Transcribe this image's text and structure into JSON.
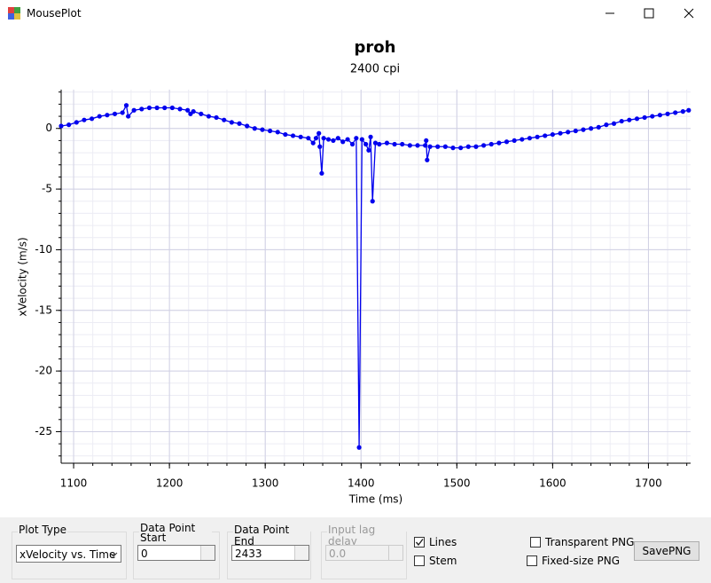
{
  "window": {
    "title": "MousePlot"
  },
  "chart_data": {
    "type": "line",
    "title": "proh",
    "subtitle": "2400 cpi",
    "xlabel": "Time (ms)",
    "ylabel": "xVelocity (m/s)",
    "color": "#0000ee",
    "grid": true,
    "xlim": [
      1087,
      1744
    ],
    "ylim": [
      -27.6,
      3.2
    ],
    "xticks": [
      1100,
      1200,
      1300,
      1400,
      1500,
      1600,
      1700
    ],
    "yticks": [
      0,
      -5,
      -10,
      -15,
      -20,
      -25
    ],
    "x": [
      1087,
      1095,
      1103,
      1111,
      1119,
      1127,
      1135,
      1143,
      1151,
      1155,
      1157,
      1163,
      1171,
      1179,
      1187,
      1195,
      1203,
      1211,
      1219,
      1222,
      1225,
      1233,
      1241,
      1249,
      1257,
      1265,
      1273,
      1281,
      1289,
      1297,
      1305,
      1313,
      1321,
      1329,
      1337,
      1345,
      1350,
      1353,
      1356,
      1357,
      1359,
      1361,
      1366,
      1371,
      1376,
      1381,
      1386,
      1391,
      1395,
      1398,
      1401,
      1405,
      1408,
      1410,
      1412,
      1415,
      1419,
      1427,
      1435,
      1443,
      1451,
      1459,
      1467,
      1468,
      1469,
      1472,
      1480,
      1488,
      1496,
      1504,
      1512,
      1520,
      1528,
      1536,
      1544,
      1552,
      1560,
      1568,
      1576,
      1584,
      1592,
      1600,
      1608,
      1616,
      1624,
      1632,
      1640,
      1648,
      1656,
      1664,
      1672,
      1680,
      1688,
      1696,
      1704,
      1712,
      1720,
      1728,
      1736,
      1742
    ],
    "values": [
      0.2,
      0.3,
      0.5,
      0.7,
      0.8,
      1.0,
      1.1,
      1.2,
      1.3,
      1.9,
      1.0,
      1.5,
      1.6,
      1.7,
      1.7,
      1.7,
      1.7,
      1.6,
      1.5,
      1.2,
      1.4,
      1.2,
      1.0,
      0.9,
      0.7,
      0.5,
      0.4,
      0.2,
      0.0,
      -0.1,
      -0.2,
      -0.3,
      -0.5,
      -0.6,
      -0.7,
      -0.8,
      -1.2,
      -0.8,
      -0.4,
      -1.5,
      -3.7,
      -0.8,
      -0.9,
      -1.0,
      -0.8,
      -1.1,
      -0.9,
      -1.3,
      -0.8,
      -26.3,
      -0.9,
      -1.3,
      -1.8,
      -0.7,
      -6.0,
      -1.2,
      -1.3,
      -1.2,
      -1.3,
      -1.3,
      -1.4,
      -1.4,
      -1.4,
      -1.0,
      -2.6,
      -1.5,
      -1.5,
      -1.5,
      -1.6,
      -1.6,
      -1.5,
      -1.5,
      -1.4,
      -1.3,
      -1.2,
      -1.1,
      -1.0,
      -0.9,
      -0.8,
      -0.7,
      -0.6,
      -0.5,
      -0.4,
      -0.3,
      -0.2,
      -0.1,
      0.0,
      0.1,
      0.3,
      0.4,
      0.6,
      0.7,
      0.8,
      0.9,
      1.0,
      1.1,
      1.2,
      1.3,
      1.4,
      1.5
    ]
  },
  "controls": {
    "plot_type": {
      "label": "Plot Type",
      "value": "xVelocity vs. Time"
    },
    "start": {
      "label": "Data Point Start",
      "value": "0"
    },
    "end": {
      "label": "Data Point End",
      "value": "2433"
    },
    "lag": {
      "label": "Input lag delay",
      "value": "0.0"
    },
    "lines": {
      "label": "Lines",
      "checked": true
    },
    "stem": {
      "label": "Stem",
      "checked": false
    },
    "transparent": {
      "label": "Transparent PNG",
      "checked": false
    },
    "fixed": {
      "label": "Fixed-size PNG",
      "checked": false
    },
    "save": {
      "label": "SavePNG"
    }
  }
}
